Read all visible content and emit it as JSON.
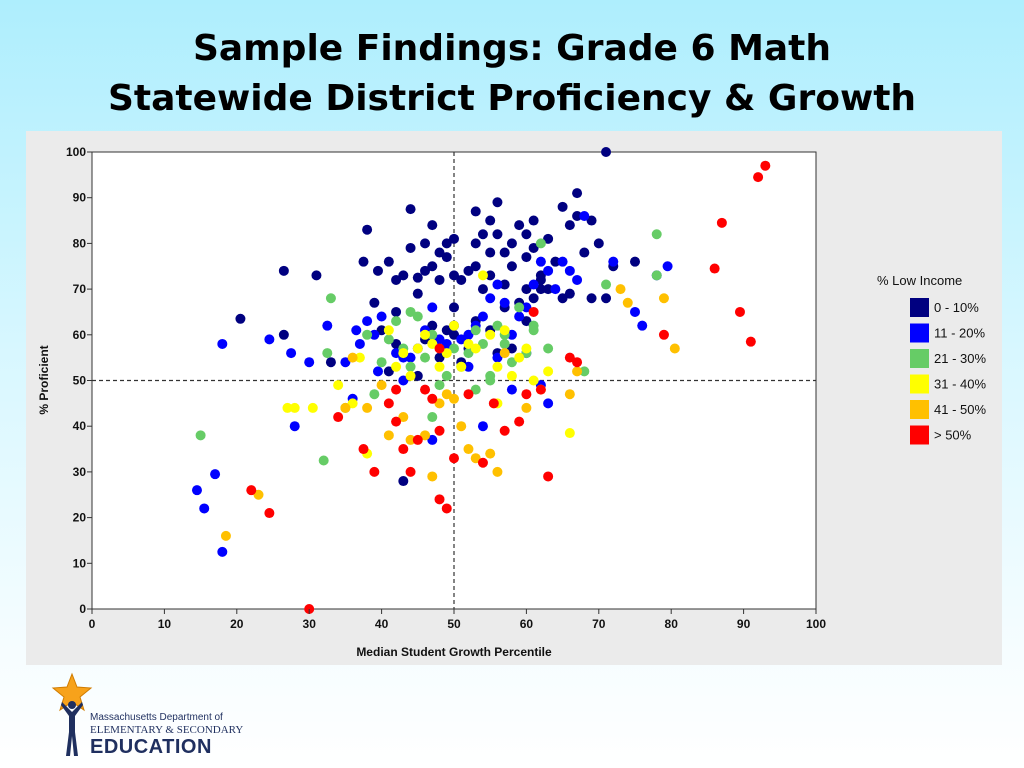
{
  "slide": {
    "title_line1": "Sample Findings: Grade 6 Math",
    "title_line2": "Statewide District Proficiency & Growth"
  },
  "logo": {
    "line1": "Massachusetts Department of",
    "line2": "ELEMENTARY & SECONDARY",
    "line3": "EDUCATION"
  },
  "chart_data": {
    "type": "scatter",
    "xlabel": "Median Student Growth Percentile",
    "ylabel": "% Proficient",
    "xlim": [
      0,
      100
    ],
    "ylim": [
      0,
      100
    ],
    "xticks": [
      "0",
      "10",
      "20",
      "30",
      "40",
      "50",
      "60",
      "70",
      "80",
      "90",
      "100"
    ],
    "yticks": [
      "0",
      "10",
      "20",
      "30",
      "40",
      "50",
      "60",
      "70",
      "80",
      "90",
      "100"
    ],
    "reference_lines": {
      "x": 50,
      "y": 50,
      "style": "dashed"
    },
    "grid": false,
    "legend_title": "% Low Income",
    "legend_position": "right",
    "series": [
      {
        "name": "0 - 10%",
        "color": "#000080",
        "points": [
          [
            26.5,
            74
          ],
          [
            31,
            73
          ],
          [
            33,
            54
          ],
          [
            37.5,
            76
          ],
          [
            38,
            83
          ],
          [
            39,
            67
          ],
          [
            39.5,
            74
          ],
          [
            41,
            76
          ],
          [
            42,
            65
          ],
          [
            42,
            72
          ],
          [
            43,
            73
          ],
          [
            44,
            87.5
          ],
          [
            44,
            79
          ],
          [
            45,
            69
          ],
          [
            45,
            72.5
          ],
          [
            46,
            74
          ],
          [
            46,
            80
          ],
          [
            47,
            75
          ],
          [
            47,
            84
          ],
          [
            48,
            72
          ],
          [
            48,
            78
          ],
          [
            49,
            80
          ],
          [
            49,
            77
          ],
          [
            50,
            81
          ],
          [
            50,
            73
          ],
          [
            50,
            66
          ],
          [
            51,
            72
          ],
          [
            52,
            74
          ],
          [
            53,
            87
          ],
          [
            53,
            80
          ],
          [
            53,
            75
          ],
          [
            54,
            82
          ],
          [
            54,
            70
          ],
          [
            55,
            85
          ],
          [
            55,
            78
          ],
          [
            55,
            73
          ],
          [
            56,
            89
          ],
          [
            56,
            82
          ],
          [
            57,
            78
          ],
          [
            57,
            71
          ],
          [
            58,
            80
          ],
          [
            58,
            75
          ],
          [
            59,
            84
          ],
          [
            59,
            67
          ],
          [
            60,
            82
          ],
          [
            60,
            77
          ],
          [
            60,
            70
          ],
          [
            61,
            85
          ],
          [
            61,
            79
          ],
          [
            62,
            73
          ],
          [
            62,
            70
          ],
          [
            63,
            81
          ],
          [
            64,
            76
          ],
          [
            65,
            88
          ],
          [
            65,
            68
          ],
          [
            66,
            84
          ],
          [
            67,
            91
          ],
          [
            67,
            86
          ],
          [
            68,
            78
          ],
          [
            69,
            85
          ],
          [
            70,
            80
          ],
          [
            71,
            100
          ],
          [
            71,
            68
          ],
          [
            72,
            75
          ],
          [
            75,
            76
          ],
          [
            20.5,
            63.5
          ],
          [
            26.5,
            60
          ],
          [
            40,
            61
          ],
          [
            41,
            52
          ],
          [
            42,
            58
          ],
          [
            43,
            28
          ],
          [
            45,
            51
          ],
          [
            46,
            59
          ],
          [
            47,
            62
          ],
          [
            48,
            55
          ],
          [
            49,
            61
          ],
          [
            50,
            60
          ],
          [
            51,
            54
          ],
          [
            52,
            57
          ],
          [
            53,
            63
          ],
          [
            55,
            61
          ],
          [
            56,
            56
          ],
          [
            57,
            66
          ],
          [
            58,
            57
          ],
          [
            60,
            63
          ],
          [
            61,
            68
          ],
          [
            62,
            72
          ],
          [
            63,
            70
          ],
          [
            66,
            69
          ],
          [
            69,
            68
          ]
        ]
      },
      {
        "name": "11 - 20%",
        "color": "#0000ff",
        "points": [
          [
            18,
            58
          ],
          [
            24.5,
            59
          ],
          [
            27.5,
            56
          ],
          [
            30,
            54
          ],
          [
            32.5,
            62
          ],
          [
            35,
            54
          ],
          [
            36.5,
            61
          ],
          [
            37,
            58
          ],
          [
            38,
            63
          ],
          [
            39,
            60
          ],
          [
            40,
            64
          ],
          [
            42,
            56
          ],
          [
            43,
            50
          ],
          [
            44,
            55
          ],
          [
            45,
            57
          ],
          [
            46,
            61
          ],
          [
            47,
            66
          ],
          [
            48,
            59
          ],
          [
            49,
            58
          ],
          [
            50,
            62
          ],
          [
            51,
            59
          ],
          [
            52,
            53
          ],
          [
            53,
            62
          ],
          [
            54,
            64
          ],
          [
            55,
            68
          ],
          [
            56,
            71
          ],
          [
            57,
            67
          ],
          [
            58,
            60
          ],
          [
            59,
            64
          ],
          [
            60,
            66
          ],
          [
            61,
            71
          ],
          [
            62,
            76
          ],
          [
            63,
            74
          ],
          [
            64,
            70
          ],
          [
            65,
            76
          ],
          [
            66,
            74
          ],
          [
            67,
            72
          ],
          [
            68,
            86
          ],
          [
            72,
            76
          ],
          [
            75,
            65
          ],
          [
            76,
            62
          ],
          [
            78,
            73
          ],
          [
            79.5,
            75
          ],
          [
            14.5,
            26
          ],
          [
            15.5,
            22
          ],
          [
            17,
            29.5
          ],
          [
            18,
            12.5
          ],
          [
            28,
            40
          ],
          [
            36,
            46
          ],
          [
            39.5,
            52
          ],
          [
            43,
            55
          ],
          [
            47,
            37
          ],
          [
            52,
            60
          ],
          [
            54,
            40
          ],
          [
            58,
            48
          ],
          [
            60,
            56
          ],
          [
            62,
            49
          ],
          [
            63,
            45
          ],
          [
            56,
            55
          ]
        ]
      },
      {
        "name": "21 - 30%",
        "color": "#66cc66",
        "points": [
          [
            15,
            38
          ],
          [
            32,
            32.5
          ],
          [
            33,
            68
          ],
          [
            35,
            44
          ],
          [
            38,
            60
          ],
          [
            39,
            47
          ],
          [
            40,
            54
          ],
          [
            41,
            59
          ],
          [
            42,
            63
          ],
          [
            43,
            57
          ],
          [
            44,
            53
          ],
          [
            45,
            64
          ],
          [
            46,
            55
          ],
          [
            47,
            60
          ],
          [
            48,
            49
          ],
          [
            49,
            51
          ],
          [
            50,
            57
          ],
          [
            51,
            53
          ],
          [
            52,
            56
          ],
          [
            53,
            61
          ],
          [
            54,
            58
          ],
          [
            55,
            50
          ],
          [
            56,
            62
          ],
          [
            57,
            58
          ],
          [
            58,
            54
          ],
          [
            59,
            66
          ],
          [
            60,
            56
          ],
          [
            61,
            61
          ],
          [
            62,
            80
          ],
          [
            63,
            57
          ],
          [
            71,
            71
          ],
          [
            78,
            82
          ],
          [
            78,
            73
          ],
          [
            57,
            60
          ],
          [
            47,
            42
          ],
          [
            53,
            48
          ],
          [
            32.5,
            56
          ],
          [
            61,
            62
          ],
          [
            55,
            51
          ],
          [
            68,
            52
          ],
          [
            44,
            65
          ]
        ]
      },
      {
        "name": "31 - 40%",
        "color": "#ffff00",
        "points": [
          [
            27,
            44
          ],
          [
            28,
            44
          ],
          [
            30.5,
            44
          ],
          [
            34,
            49
          ],
          [
            36,
            45
          ],
          [
            37,
            55
          ],
          [
            38,
            34
          ],
          [
            41,
            61
          ],
          [
            42,
            53
          ],
          [
            43,
            56
          ],
          [
            44,
            51
          ],
          [
            45,
            57
          ],
          [
            46,
            60
          ],
          [
            47,
            58
          ],
          [
            48,
            53
          ],
          [
            49,
            56
          ],
          [
            50,
            62
          ],
          [
            51,
            53
          ],
          [
            52,
            58
          ],
          [
            53,
            57
          ],
          [
            54,
            73
          ],
          [
            55,
            60
          ],
          [
            56,
            53
          ],
          [
            57,
            61
          ],
          [
            58,
            51
          ],
          [
            59,
            55
          ],
          [
            60,
            57
          ],
          [
            61,
            50
          ],
          [
            62,
            48
          ],
          [
            63,
            52
          ],
          [
            66,
            38.5
          ],
          [
            56,
            45
          ]
        ]
      },
      {
        "name": "41 - 50%",
        "color": "#ffc000",
        "points": [
          [
            18.5,
            16
          ],
          [
            23,
            25
          ],
          [
            35,
            44
          ],
          [
            36,
            55
          ],
          [
            38,
            44
          ],
          [
            40,
            49
          ],
          [
            41,
            38
          ],
          [
            43,
            42
          ],
          [
            44,
            37
          ],
          [
            46,
            38
          ],
          [
            47,
            29
          ],
          [
            48,
            45
          ],
          [
            49,
            47
          ],
          [
            50,
            46
          ],
          [
            51,
            40
          ],
          [
            52,
            35
          ],
          [
            53,
            33
          ],
          [
            55,
            34
          ],
          [
            56,
            30
          ],
          [
            57,
            56
          ],
          [
            60,
            44
          ],
          [
            67,
            52
          ],
          [
            73,
            70
          ],
          [
            74,
            67
          ],
          [
            79,
            68
          ],
          [
            80.5,
            57
          ],
          [
            66,
            47
          ]
        ]
      },
      {
        "name": "> 50%",
        "color": "#ff0000",
        "points": [
          [
            22,
            26
          ],
          [
            24.5,
            21
          ],
          [
            30,
            0
          ],
          [
            34,
            42
          ],
          [
            37.5,
            35
          ],
          [
            39,
            30
          ],
          [
            41,
            45
          ],
          [
            42,
            41
          ],
          [
            43,
            35
          ],
          [
            44,
            30
          ],
          [
            45,
            37
          ],
          [
            46,
            48
          ],
          [
            47,
            46
          ],
          [
            48,
            39
          ],
          [
            48,
            24
          ],
          [
            49,
            22
          ],
          [
            50,
            33
          ],
          [
            52,
            47
          ],
          [
            54,
            32
          ],
          [
            55.5,
            45
          ],
          [
            57,
            39
          ],
          [
            59,
            41
          ],
          [
            60,
            47
          ],
          [
            61,
            65
          ],
          [
            62,
            48
          ],
          [
            63,
            29
          ],
          [
            66,
            55
          ],
          [
            67,
            54
          ],
          [
            86,
            74.5
          ],
          [
            87,
            84.5
          ],
          [
            89.5,
            65
          ],
          [
            91,
            58.5
          ],
          [
            92,
            94.5
          ],
          [
            93,
            97
          ],
          [
            79,
            60
          ],
          [
            48,
            57
          ],
          [
            42,
            48
          ]
        ]
      }
    ]
  }
}
